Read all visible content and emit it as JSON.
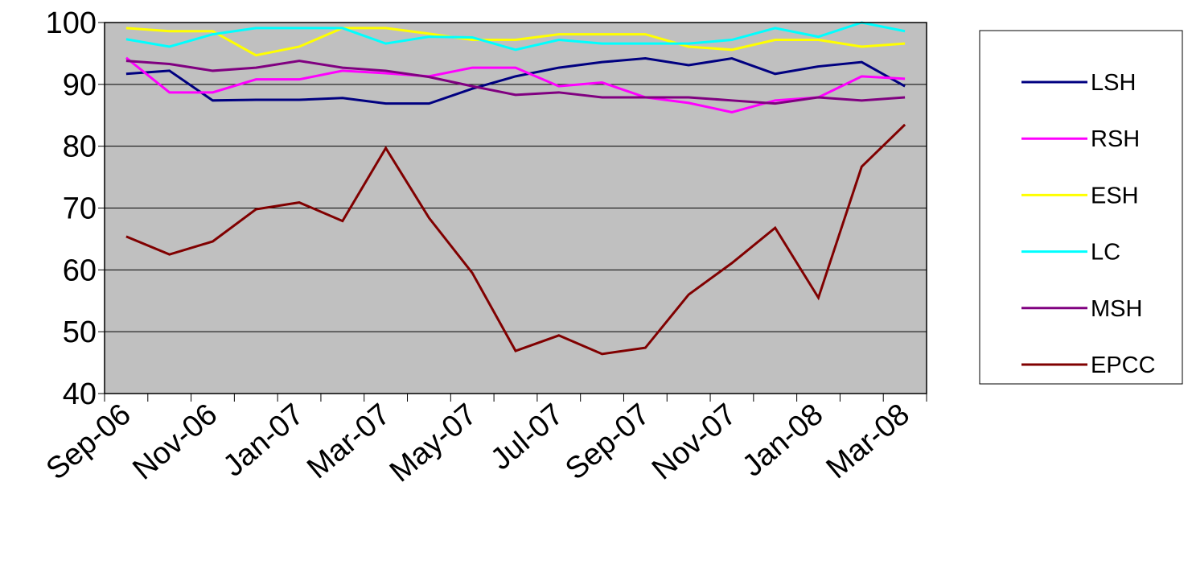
{
  "chart_data": {
    "type": "line",
    "categories": [
      "Sep-06",
      null,
      "Nov-06",
      null,
      "Jan-07",
      null,
      "Mar-07",
      null,
      "May-07",
      null,
      "Jul-07",
      null,
      "Sep-07",
      null,
      "Nov-07",
      null,
      "Jan-08",
      null,
      "Mar-08"
    ],
    "series": [
      {
        "name": "LSH",
        "color": "#000080",
        "values": [
          91.7,
          92.2,
          87.4,
          87.5,
          87.5,
          87.8,
          86.9,
          86.9,
          89.3,
          91.3,
          92.7,
          93.6,
          94.2,
          93.1,
          94.2,
          91.7,
          92.9,
          93.6,
          89.7
        ]
      },
      {
        "name": "RSH",
        "color": "#ff00ff",
        "values": [
          94.3,
          88.7,
          88.7,
          90.8,
          90.8,
          92.2,
          91.8,
          91.3,
          92.7,
          92.7,
          89.7,
          90.3,
          87.9,
          87.0,
          85.5,
          87.4,
          87.9,
          91.3,
          90.9
        ]
      },
      {
        "name": "ESH",
        "color": "#ffff00",
        "values": [
          99.1,
          98.6,
          98.6,
          94.7,
          96.1,
          99.1,
          99.1,
          98.2,
          97.2,
          97.2,
          98.1,
          98.1,
          98.1,
          96.1,
          95.6,
          97.2,
          97.2,
          96.1,
          96.6
        ]
      },
      {
        "name": "LC",
        "color": "#00ffff",
        "values": [
          97.3,
          96.1,
          98.1,
          99.1,
          99.1,
          99.1,
          96.6,
          97.7,
          97.6,
          95.6,
          97.2,
          96.6,
          96.6,
          96.6,
          97.2,
          99.1,
          97.7,
          100,
          98.6
        ]
      },
      {
        "name": "MSH",
        "color": "#800080",
        "values": [
          93.8,
          93.3,
          92.2,
          92.7,
          93.8,
          92.7,
          92.2,
          91.2,
          89.7,
          88.3,
          88.7,
          87.9,
          87.9,
          87.9,
          87.4,
          86.9,
          87.9,
          87.4,
          87.9
        ]
      },
      {
        "name": "EPCC",
        "color": "#800000",
        "values": [
          65.4,
          62.5,
          64.6,
          69.8,
          70.9,
          67.9,
          79.7,
          68.4,
          59.5,
          46.9,
          49.4,
          46.4,
          47.4,
          56.0,
          61.1,
          66.8,
          55.5,
          76.7,
          83.5
        ]
      }
    ],
    "ylim": [
      40,
      100
    ],
    "yticks": [
      40,
      50,
      60,
      70,
      80,
      90,
      100
    ],
    "grid": true,
    "plot_background": "#c0c0c0"
  }
}
